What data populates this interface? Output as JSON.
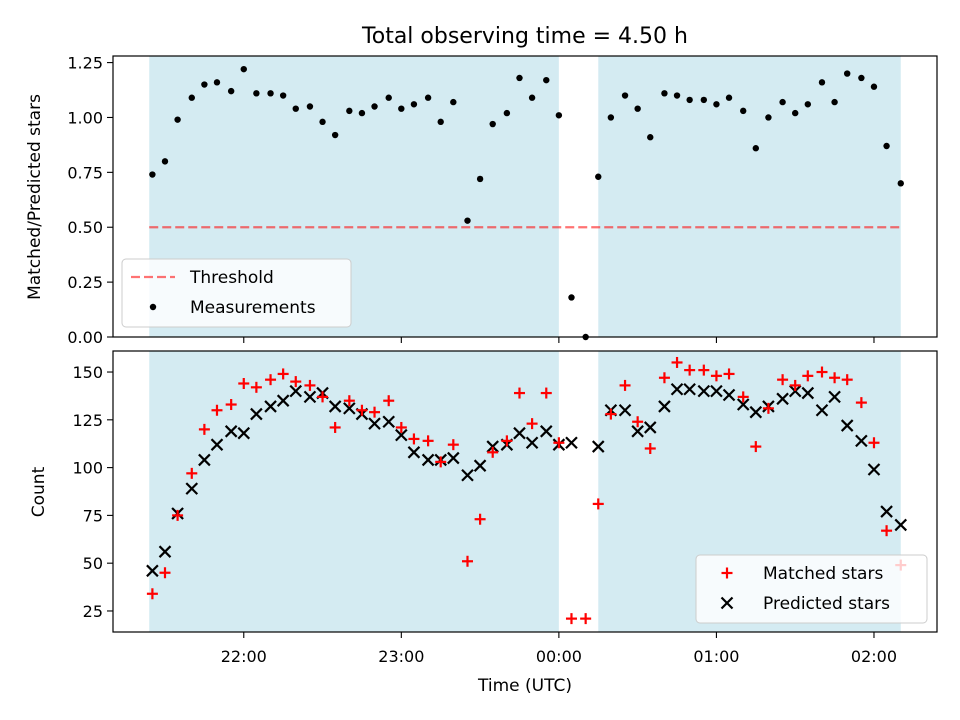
{
  "title": "Total observing time = 4.50 h",
  "colors": {
    "band": "#add8e6",
    "threshold": "#ff0000",
    "matched": "#ff0000",
    "predicted": "#000000",
    "measure": "#000000"
  },
  "x_ticks": [
    {
      "t": 22.0,
      "label": "22:00"
    },
    {
      "t": 23.0,
      "label": "23:00"
    },
    {
      "t": 24.0,
      "label": "00:00"
    },
    {
      "t": 25.0,
      "label": "01:00"
    },
    {
      "t": 26.0,
      "label": "02:00"
    }
  ],
  "chart_data": [
    {
      "type": "scatter",
      "panel": "top",
      "ylabel": "Matched/Predicted stars",
      "xlim": [
        21.17,
        26.4
      ],
      "ylim": [
        0.0,
        1.28
      ],
      "y_ticks": [
        "0.00",
        "0.25",
        "0.50",
        "0.75",
        "1.00",
        "1.25"
      ],
      "observing_intervals": [
        [
          21.4,
          24.0
        ],
        [
          24.25,
          26.17
        ]
      ],
      "threshold": {
        "name": "Threshold",
        "y": 0.5,
        "x_range": [
          21.4,
          26.17
        ]
      },
      "legend": {
        "placement": "lower-left",
        "entries": [
          "Threshold",
          "Measurements"
        ]
      },
      "series": [
        {
          "name": "Measurements",
          "points": [
            [
              21.42,
              0.74
            ],
            [
              21.5,
              0.8
            ],
            [
              21.58,
              0.99
            ],
            [
              21.67,
              1.09
            ],
            [
              21.75,
              1.15
            ],
            [
              21.83,
              1.16
            ],
            [
              21.92,
              1.12
            ],
            [
              22.0,
              1.22
            ],
            [
              22.08,
              1.11
            ],
            [
              22.17,
              1.11
            ],
            [
              22.25,
              1.1
            ],
            [
              22.33,
              1.04
            ],
            [
              22.42,
              1.05
            ],
            [
              22.5,
              0.98
            ],
            [
              22.58,
              0.92
            ],
            [
              22.67,
              1.03
            ],
            [
              22.75,
              1.02
            ],
            [
              22.83,
              1.05
            ],
            [
              22.92,
              1.09
            ],
            [
              23.0,
              1.04
            ],
            [
              23.08,
              1.06
            ],
            [
              23.17,
              1.09
            ],
            [
              23.25,
              0.98
            ],
            [
              23.33,
              1.07
            ],
            [
              23.42,
              0.53
            ],
            [
              23.5,
              0.72
            ],
            [
              23.58,
              0.97
            ],
            [
              23.67,
              1.02
            ],
            [
              23.75,
              1.18
            ],
            [
              23.83,
              1.09
            ],
            [
              23.92,
              1.17
            ],
            [
              24.0,
              1.01
            ],
            [
              24.08,
              0.18
            ],
            [
              24.17,
              0.0
            ],
            [
              24.25,
              0.73
            ],
            [
              24.33,
              1.0
            ],
            [
              24.42,
              1.1
            ],
            [
              24.5,
              1.04
            ],
            [
              24.58,
              0.91
            ],
            [
              24.67,
              1.11
            ],
            [
              24.75,
              1.1
            ],
            [
              24.83,
              1.08
            ],
            [
              24.92,
              1.08
            ],
            [
              25.0,
              1.06
            ],
            [
              25.08,
              1.09
            ],
            [
              25.17,
              1.03
            ],
            [
              25.25,
              0.86
            ],
            [
              25.33,
              1.0
            ],
            [
              25.42,
              1.07
            ],
            [
              25.5,
              1.02
            ],
            [
              25.58,
              1.06
            ],
            [
              25.67,
              1.16
            ],
            [
              25.75,
              1.07
            ],
            [
              25.83,
              1.2
            ],
            [
              25.92,
              1.18
            ],
            [
              26.0,
              1.14
            ],
            [
              26.08,
              0.87
            ],
            [
              26.17,
              0.7
            ]
          ]
        }
      ]
    },
    {
      "type": "scatter",
      "panel": "bottom",
      "xlabel": "Time (UTC)",
      "ylabel": "Count",
      "xlim": [
        21.17,
        26.4
      ],
      "ylim": [
        14,
        161
      ],
      "y_ticks": [
        "25",
        "50",
        "75",
        "100",
        "125",
        "150"
      ],
      "observing_intervals": [
        [
          21.4,
          24.0
        ],
        [
          24.25,
          26.17
        ]
      ],
      "legend": {
        "placement": "lower-right",
        "entries": [
          "Matched stars",
          "Predicted stars"
        ]
      },
      "series": [
        {
          "name": "Matched stars",
          "marker": "plus",
          "points": [
            [
              21.42,
              34
            ],
            [
              21.5,
              45
            ],
            [
              21.58,
              75
            ],
            [
              21.67,
              97
            ],
            [
              21.75,
              120
            ],
            [
              21.83,
              130
            ],
            [
              21.92,
              133
            ],
            [
              22.0,
              144
            ],
            [
              22.08,
              142
            ],
            [
              22.17,
              146
            ],
            [
              22.25,
              149
            ],
            [
              22.33,
              145
            ],
            [
              22.42,
              143
            ],
            [
              22.5,
              137
            ],
            [
              22.58,
              121
            ],
            [
              22.67,
              135
            ],
            [
              22.75,
              130
            ],
            [
              22.83,
              129
            ],
            [
              22.92,
              135
            ],
            [
              23.0,
              121
            ],
            [
              23.08,
              115
            ],
            [
              23.17,
              114
            ],
            [
              23.25,
              103
            ],
            [
              23.33,
              112
            ],
            [
              23.42,
              51
            ],
            [
              23.5,
              73
            ],
            [
              23.58,
              108
            ],
            [
              23.67,
              114
            ],
            [
              23.75,
              139
            ],
            [
              23.83,
              123
            ],
            [
              23.92,
              139
            ],
            [
              24.0,
              113
            ],
            [
              24.08,
              21
            ],
            [
              24.17,
              21
            ],
            [
              24.25,
              81
            ],
            [
              24.33,
              128
            ],
            [
              24.42,
              143
            ],
            [
              24.5,
              124
            ],
            [
              24.58,
              110
            ],
            [
              24.67,
              147
            ],
            [
              24.75,
              155
            ],
            [
              24.83,
              151
            ],
            [
              24.92,
              151
            ],
            [
              25.0,
              148
            ],
            [
              25.08,
              149
            ],
            [
              25.17,
              137
            ],
            [
              25.25,
              111
            ],
            [
              25.33,
              131
            ],
            [
              25.42,
              146
            ],
            [
              25.5,
              143
            ],
            [
              25.58,
              148
            ],
            [
              25.67,
              150
            ],
            [
              25.75,
              147
            ],
            [
              25.83,
              146
            ],
            [
              25.92,
              134
            ],
            [
              26.0,
              113
            ],
            [
              26.08,
              67
            ],
            [
              26.17,
              49
            ]
          ]
        },
        {
          "name": "Predicted stars",
          "marker": "x",
          "points": [
            [
              21.42,
              46
            ],
            [
              21.5,
              56
            ],
            [
              21.58,
              76
            ],
            [
              21.67,
              89
            ],
            [
              21.75,
              104
            ],
            [
              21.83,
              112
            ],
            [
              21.92,
              119
            ],
            [
              22.0,
              118
            ],
            [
              22.08,
              128
            ],
            [
              22.17,
              132
            ],
            [
              22.25,
              135
            ],
            [
              22.33,
              140
            ],
            [
              22.42,
              137
            ],
            [
              22.5,
              139
            ],
            [
              22.58,
              132
            ],
            [
              22.67,
              131
            ],
            [
              22.75,
              128
            ],
            [
              22.83,
              123
            ],
            [
              22.92,
              124
            ],
            [
              23.0,
              117
            ],
            [
              23.08,
              108
            ],
            [
              23.17,
              104
            ],
            [
              23.25,
              104
            ],
            [
              23.33,
              105
            ],
            [
              23.42,
              96
            ],
            [
              23.5,
              101
            ],
            [
              23.58,
              111
            ],
            [
              23.67,
              112
            ],
            [
              23.75,
              118
            ],
            [
              23.83,
              113
            ],
            [
              23.92,
              119
            ],
            [
              24.0,
              112
            ],
            [
              24.08,
              113
            ],
            [
              24.25,
              111
            ],
            [
              24.33,
              130
            ],
            [
              24.42,
              130
            ],
            [
              24.5,
              119
            ],
            [
              24.58,
              121
            ],
            [
              24.67,
              132
            ],
            [
              24.75,
              141
            ],
            [
              24.83,
              141
            ],
            [
              24.92,
              140
            ],
            [
              25.0,
              140
            ],
            [
              25.08,
              138
            ],
            [
              25.17,
              133
            ],
            [
              25.25,
              129
            ],
            [
              25.33,
              132
            ],
            [
              25.42,
              136
            ],
            [
              25.5,
              140
            ],
            [
              25.58,
              139
            ],
            [
              25.67,
              130
            ],
            [
              25.75,
              137
            ],
            [
              25.83,
              122
            ],
            [
              25.92,
              114
            ],
            [
              26.0,
              99
            ],
            [
              26.08,
              77
            ],
            [
              26.17,
              70
            ]
          ]
        }
      ]
    }
  ]
}
